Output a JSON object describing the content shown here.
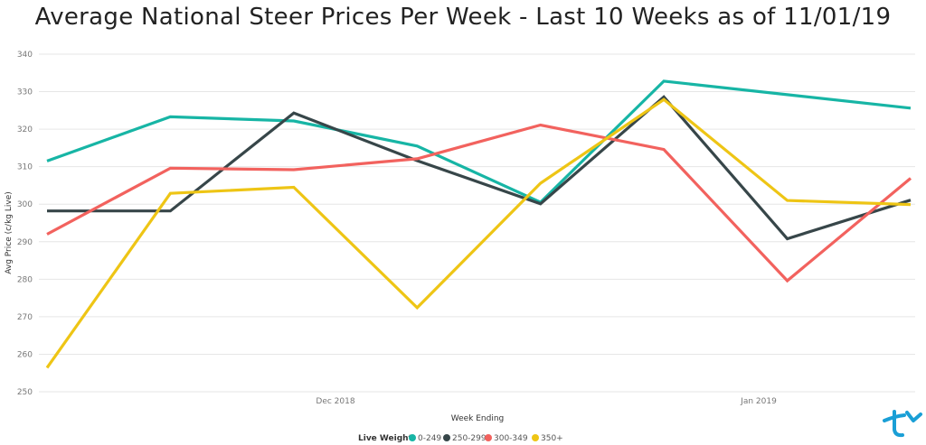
{
  "chart_data": {
    "type": "line",
    "title": "Average National Steer Prices Per Week - Last 10 Weeks as of 11/01/19",
    "xlabel": "Week Ending",
    "ylabel": "Avg Price (c/kg Live)",
    "x_tick_labels": [
      "Dec 2018",
      "Jan 2019"
    ],
    "y_ticks": [
      250,
      260,
      270,
      280,
      290,
      300,
      310,
      320,
      330,
      340
    ],
    "ylim": [
      250,
      340
    ],
    "grid": true,
    "legend_title": "Live Weight",
    "legend_position": "bottom-center",
    "series": [
      {
        "name": "0-249",
        "color": "#17b5a5",
        "values": [
          311.5,
          323.3,
          322.2,
          315.5,
          300.5,
          332.8,
          329.2,
          325.6
        ]
      },
      {
        "name": "250-299",
        "color": "#374649",
        "values": [
          298.2,
          298.2,
          324.3,
          311.6,
          300.1,
          328.6,
          290.8,
          301.1
        ]
      },
      {
        "name": "300-349",
        "color": "#f2625e",
        "values": [
          292.0,
          309.6,
          309.2,
          312.1,
          321.1,
          314.6,
          279.6,
          306.9
        ]
      },
      {
        "name": "350+",
        "color": "#eec515",
        "values": [
          256.4,
          302.9,
          304.5,
          272.4,
          305.6,
          327.9,
          301.0,
          299.9
        ]
      }
    ]
  },
  "logo": {
    "name": "brand-logo"
  }
}
